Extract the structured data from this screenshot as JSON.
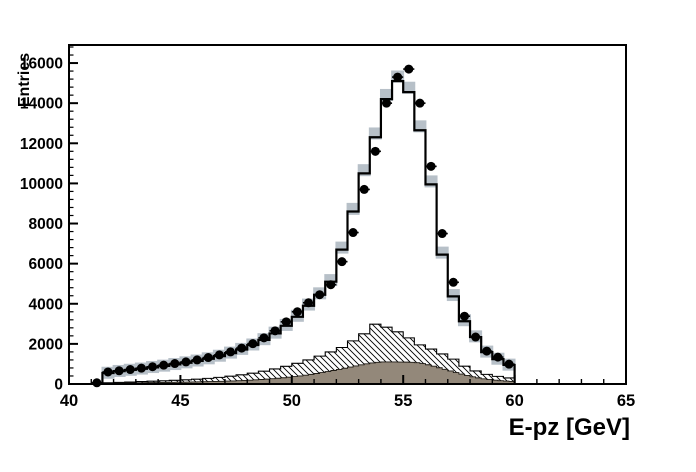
{
  "chart_data": {
    "type": "bar",
    "subtype": "step-histogram",
    "title": "",
    "xlabel": "E-pz [GeV]",
    "ylabel": "Entries",
    "xlim": [
      40,
      65
    ],
    "ylim": [
      0,
      16900
    ],
    "grid": false,
    "legend": null,
    "x_major_ticks": [
      40,
      45,
      50,
      55,
      60,
      65
    ],
    "x_minor_step": 1,
    "y_major_ticks": [
      0,
      2000,
      4000,
      6000,
      8000,
      10000,
      12000,
      14000,
      16000
    ],
    "y_minor_step": 400,
    "series": [
      {
        "name": "systematic-band",
        "style": "square-band",
        "color": "#b7c0c8",
        "bin_start": 41.5,
        "bin_width": 0.5,
        "values": [
          560,
          650,
          710,
          770,
          845,
          915,
          995,
          1080,
          1170,
          1280,
          1410,
          1565,
          1750,
          1970,
          2235,
          2560,
          2945,
          3400,
          3960,
          4520,
          5180,
          6800,
          8730,
          10660,
          12490,
          14410,
          15330,
          14770,
          12845,
          10100,
          6550,
          4435,
          3180,
          2375,
          1615,
          1260,
          965
        ]
      },
      {
        "name": "mc-total",
        "style": "step-line",
        "color": "#000000",
        "bin_start": 41.5,
        "bin_width": 0.5,
        "values": [
          550,
          640,
          700,
          760,
          830,
          900,
          980,
          1060,
          1150,
          1260,
          1390,
          1540,
          1720,
          1940,
          2200,
          2520,
          2900,
          3350,
          3900,
          4450,
          5100,
          6700,
          8600,
          10500,
          12300,
          14200,
          15100,
          14550,
          12650,
          9950,
          6450,
          4370,
          3130,
          2340,
          1590,
          1240,
          950
        ]
      },
      {
        "name": "background-hatched",
        "style": "hatched-fill",
        "fill": "#ffffff",
        "hatch_color": "#000000",
        "bin_start": 41.5,
        "bin_width": 0.5,
        "values": [
          60,
          80,
          100,
          120,
          140,
          160,
          185,
          210,
          240,
          280,
          330,
          390,
          460,
          540,
          640,
          750,
          880,
          1030,
          1200,
          1390,
          1600,
          1820,
          2150,
          2500,
          2980,
          2830,
          2600,
          2300,
          1950,
          1740,
          1500,
          1240,
          890,
          650,
          480,
          380,
          300
        ]
      },
      {
        "name": "background-solid",
        "style": "solid-fill",
        "color": "#93887a",
        "bin_start": 42.0,
        "bin_width": 0.25,
        "values": [
          40,
          45,
          50,
          55,
          60,
          64,
          68,
          72,
          76,
          80,
          84,
          88,
          92,
          97,
          102,
          108,
          114,
          121,
          128,
          136,
          145,
          155,
          166,
          178,
          192,
          207,
          224,
          243,
          264,
          287,
          312,
          340,
          370,
          403,
          440,
          480,
          523,
          570,
          620,
          673,
          728,
          785,
          843,
          900,
          955,
          1005,
          1048,
          1080,
          1098,
          1100,
          1100,
          1095,
          1090,
          1080,
          1060,
          1020,
          960,
          890,
          810,
          730,
          650,
          570,
          495,
          425,
          360,
          305,
          258,
          220,
          190,
          165,
          145,
          130
        ]
      },
      {
        "name": "data-points",
        "style": "marker",
        "marker": "filled-circle",
        "color": "#000000",
        "marker_size_px": 9,
        "x_error_half_width": 0.25,
        "first_center": 41.25,
        "step": 0.5,
        "values": [
          60,
          600,
          660,
          720,
          790,
          860,
          940,
          1020,
          1100,
          1200,
          1320,
          1450,
          1600,
          1790,
          2010,
          2300,
          2650,
          3100,
          3600,
          4050,
          4450,
          4950,
          6100,
          7550,
          9700,
          11600,
          14000,
          15300,
          15700,
          14000,
          10850,
          7500,
          5070,
          3380,
          2340,
          1640,
          1340,
          990
        ]
      }
    ]
  }
}
